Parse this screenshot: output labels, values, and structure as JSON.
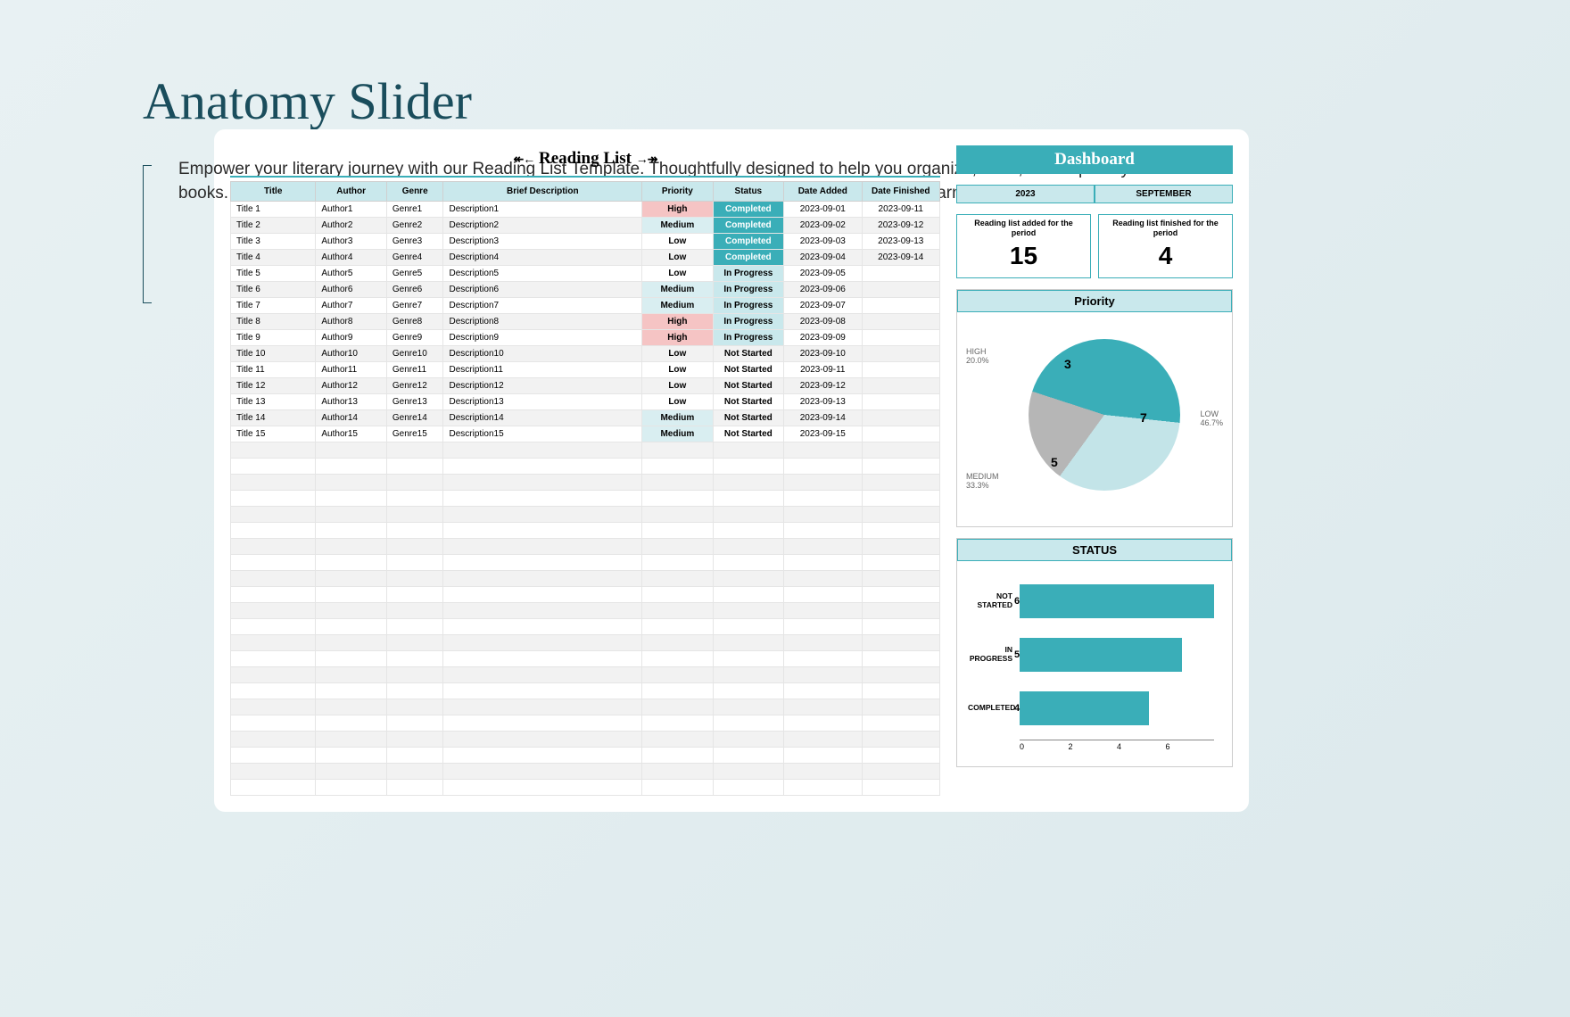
{
  "page": {
    "title": "Anatomy Slider",
    "intro": "Empower your literary journey with our Reading List Template. Thoughtfully designed to help you organize, track, and explore your favorite books. Elevate your reading experience with this user-friendly tool, tailored for bibliophiles and avid learners alike."
  },
  "colors": {
    "accent": "#3aaeb8",
    "accent_light": "#c9e8ec",
    "high": "#f5c4c4",
    "medium": "#d9eef1",
    "grey": "#b6b6b6",
    "pie_light": "#c3e4e8"
  },
  "reading_list": {
    "title": "Reading List",
    "columns": [
      "Title",
      "Author",
      "Genre",
      "Brief Description",
      "Priority",
      "Status",
      "Date Added",
      "Date Finished"
    ],
    "col_widths": [
      "12%",
      "10%",
      "8%",
      "28%",
      "10%",
      "10%",
      "11%",
      "11%"
    ],
    "rows": [
      [
        "Title 1",
        "Author1",
        "Genre1",
        "Description1",
        "High",
        "Completed",
        "2023-09-01",
        "2023-09-11"
      ],
      [
        "Title 2",
        "Author2",
        "Genre2",
        "Description2",
        "Medium",
        "Completed",
        "2023-09-02",
        "2023-09-12"
      ],
      [
        "Title 3",
        "Author3",
        "Genre3",
        "Description3",
        "Low",
        "Completed",
        "2023-09-03",
        "2023-09-13"
      ],
      [
        "Title 4",
        "Author4",
        "Genre4",
        "Description4",
        "Low",
        "Completed",
        "2023-09-04",
        "2023-09-14"
      ],
      [
        "Title 5",
        "Author5",
        "Genre5",
        "Description5",
        "Low",
        "In Progress",
        "2023-09-05",
        ""
      ],
      [
        "Title 6",
        "Author6",
        "Genre6",
        "Description6",
        "Medium",
        "In Progress",
        "2023-09-06",
        ""
      ],
      [
        "Title 7",
        "Author7",
        "Genre7",
        "Description7",
        "Medium",
        "In Progress",
        "2023-09-07",
        ""
      ],
      [
        "Title 8",
        "Author8",
        "Genre8",
        "Description8",
        "High",
        "In Progress",
        "2023-09-08",
        ""
      ],
      [
        "Title 9",
        "Author9",
        "Genre9",
        "Description9",
        "High",
        "In Progress",
        "2023-09-09",
        ""
      ],
      [
        "Title 10",
        "Author10",
        "Genre10",
        "Description10",
        "Low",
        "Not Started",
        "2023-09-10",
        ""
      ],
      [
        "Title 11",
        "Author11",
        "Genre11",
        "Description11",
        "Low",
        "Not Started",
        "2023-09-11",
        ""
      ],
      [
        "Title 12",
        "Author12",
        "Genre12",
        "Description12",
        "Low",
        "Not Started",
        "2023-09-12",
        ""
      ],
      [
        "Title 13",
        "Author13",
        "Genre13",
        "Description13",
        "Low",
        "Not Started",
        "2023-09-13",
        ""
      ],
      [
        "Title 14",
        "Author14",
        "Genre14",
        "Description14",
        "Medium",
        "Not Started",
        "2023-09-14",
        ""
      ],
      [
        "Title 15",
        "Author15",
        "Genre15",
        "Description15",
        "Medium",
        "Not Started",
        "2023-09-15",
        ""
      ]
    ],
    "empty_rows": 22
  },
  "dashboard": {
    "title": "Dashboard",
    "year": "2023",
    "month": "SEPTEMBER",
    "stat1_label": "Reading list added for the period",
    "stat1_value": "15",
    "stat2_label": "Reading list finished for the period",
    "stat2_value": "4"
  },
  "priority_chart": {
    "title": "Priority",
    "type": "pie",
    "slices": [
      {
        "label": "LOW",
        "pct": "46.7%",
        "count": "7",
        "color": "#3aaeb8"
      },
      {
        "label": "MEDIUM",
        "pct": "33.3%",
        "count": "5",
        "color": "#c3e4e8"
      },
      {
        "label": "HIGH",
        "pct": "20.0%",
        "count": "3",
        "color": "#b6b6b6"
      }
    ],
    "gradient": "#3aaeb8 0deg 168deg, #c3e4e8 168deg 288deg, #b6b6b6 288deg 360deg"
  },
  "status_chart": {
    "title": "STATUS",
    "type": "bar-horizontal",
    "max": 6,
    "bars": [
      {
        "label": "NOT STARTED",
        "value": 6
      },
      {
        "label": "IN PROGRESS",
        "value": 5
      },
      {
        "label": "COMPLETED",
        "value": 4
      }
    ],
    "axis_ticks": [
      "0",
      "2",
      "4",
      "6"
    ],
    "bar_color": "#3aaeb8"
  }
}
